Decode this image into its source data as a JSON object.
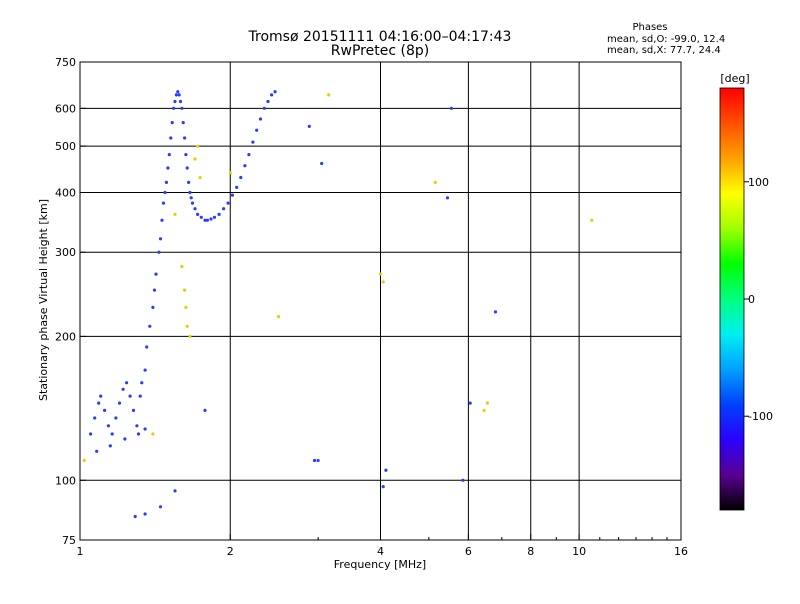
{
  "header": {
    "title_line1": "Tromsø 20151111 04:16:00–04:17:43",
    "title_line2": "RwPretec (8p)",
    "stats_title": "Phases",
    "stats_line1": "mean, sd,O:  -99.0, 12.4",
    "stats_line2": "mean, sd,X:  77.7, 24.4"
  },
  "colorbar": {
    "unit_label": "[deg]",
    "tick_labels": [
      "100",
      "0",
      "-100"
    ],
    "tick_values": [
      100,
      0,
      -100
    ],
    "range": [
      -180,
      180
    ],
    "stops": [
      "#000000",
      "#5a0090",
      "#2a00ff",
      "#0040ff",
      "#00a0ff",
      "#00f0f0",
      "#00ff80",
      "#00ff00",
      "#a0ff00",
      "#ffff00",
      "#ffa000",
      "#ff5000",
      "#ff0000"
    ]
  },
  "chart_data": {
    "type": "scatter",
    "title": "Tromsø 20151111 04:16:00–04:17:43",
    "subtitle": "RwPretec (8p)",
    "xlabel": "Frequency [MHz]",
    "ylabel": "Stationary phase Virtual Height [km]",
    "xscale": "log",
    "yscale": "log",
    "xlim": [
      1,
      16
    ],
    "ylim": [
      75,
      750
    ],
    "xticks": [
      1,
      2,
      4,
      6,
      8,
      10,
      16
    ],
    "xtick_labels": [
      "1",
      "2",
      "4",
      "6",
      "8",
      "10",
      "16"
    ],
    "yticks": [
      75,
      100,
      200,
      300,
      400,
      500,
      600,
      750
    ],
    "ytick_labels": [
      "75",
      "100",
      "200",
      "300",
      "400",
      "500",
      "600",
      "750"
    ],
    "grid": true,
    "color_by": "phase [deg]",
    "series": [
      {
        "name": "O",
        "color": "#2a3cff",
        "points": [
          [
            1.3,
            130
          ],
          [
            1.32,
            150
          ],
          [
            1.33,
            160
          ],
          [
            1.35,
            170
          ],
          [
            1.36,
            190
          ],
          [
            1.38,
            210
          ],
          [
            1.4,
            230
          ],
          [
            1.41,
            250
          ],
          [
            1.42,
            270
          ],
          [
            1.44,
            300
          ],
          [
            1.45,
            320
          ],
          [
            1.46,
            350
          ],
          [
            1.47,
            380
          ],
          [
            1.48,
            400
          ],
          [
            1.49,
            420
          ],
          [
            1.5,
            450
          ],
          [
            1.51,
            480
          ],
          [
            1.52,
            520
          ],
          [
            1.53,
            560
          ],
          [
            1.54,
            600
          ],
          [
            1.55,
            620
          ],
          [
            1.56,
            640
          ],
          [
            1.57,
            650
          ],
          [
            1.58,
            640
          ],
          [
            1.59,
            620
          ],
          [
            1.6,
            600
          ],
          [
            1.61,
            560
          ],
          [
            1.62,
            520
          ],
          [
            1.63,
            480
          ],
          [
            1.64,
            450
          ],
          [
            1.65,
            420
          ],
          [
            1.66,
            400
          ],
          [
            1.67,
            390
          ],
          [
            1.68,
            380
          ],
          [
            1.7,
            370
          ],
          [
            1.72,
            360
          ],
          [
            1.75,
            355
          ],
          [
            1.78,
            350
          ],
          [
            1.8,
            350
          ],
          [
            1.83,
            352
          ],
          [
            1.86,
            355
          ],
          [
            1.9,
            360
          ],
          [
            1.94,
            370
          ],
          [
            1.98,
            380
          ],
          [
            2.02,
            395
          ],
          [
            2.06,
            410
          ],
          [
            2.1,
            430
          ],
          [
            2.14,
            455
          ],
          [
            2.18,
            480
          ],
          [
            2.22,
            510
          ],
          [
            2.26,
            540
          ],
          [
            2.3,
            570
          ],
          [
            2.34,
            600
          ],
          [
            2.38,
            620
          ],
          [
            2.42,
            640
          ],
          [
            2.46,
            650
          ],
          [
            1.05,
            125
          ],
          [
            1.07,
            135
          ],
          [
            1.09,
            145
          ],
          [
            1.1,
            150
          ],
          [
            1.12,
            140
          ],
          [
            1.14,
            130
          ],
          [
            1.16,
            125
          ],
          [
            1.18,
            135
          ],
          [
            1.2,
            145
          ],
          [
            1.22,
            155
          ],
          [
            1.24,
            160
          ],
          [
            1.26,
            150
          ],
          [
            1.28,
            140
          ],
          [
            1.08,
            115
          ],
          [
            1.15,
            118
          ],
          [
            1.23,
            122
          ],
          [
            1.31,
            125
          ],
          [
            1.35,
            128
          ],
          [
            1.29,
            84
          ],
          [
            1.35,
            85
          ],
          [
            1.45,
            88
          ],
          [
            1.55,
            95
          ],
          [
            1.78,
            140
          ],
          [
            2.95,
            110
          ],
          [
            4.05,
            97
          ],
          [
            4.1,
            105
          ],
          [
            5.85,
            100
          ],
          [
            6.05,
            145
          ],
          [
            6.8,
            225
          ],
          [
            5.45,
            390
          ],
          [
            5.55,
            600
          ],
          [
            3.05,
            460
          ],
          [
            2.88,
            550
          ],
          [
            3.0,
            110
          ]
        ]
      },
      {
        "name": "X",
        "color": "#e8d000",
        "points": [
          [
            1.55,
            360
          ],
          [
            1.6,
            280
          ],
          [
            1.62,
            250
          ],
          [
            1.63,
            230
          ],
          [
            1.64,
            210
          ],
          [
            1.66,
            200
          ],
          [
            1.7,
            470
          ],
          [
            1.72,
            500
          ],
          [
            1.74,
            430
          ],
          [
            2.0,
            440
          ],
          [
            2.5,
            220
          ],
          [
            3.15,
            640
          ],
          [
            4.0,
            270
          ],
          [
            4.05,
            260
          ],
          [
            5.15,
            420
          ],
          [
            6.45,
            140
          ],
          [
            6.55,
            145
          ],
          [
            10.6,
            350
          ],
          [
            1.02,
            110
          ],
          [
            1.4,
            125
          ]
        ]
      }
    ]
  }
}
